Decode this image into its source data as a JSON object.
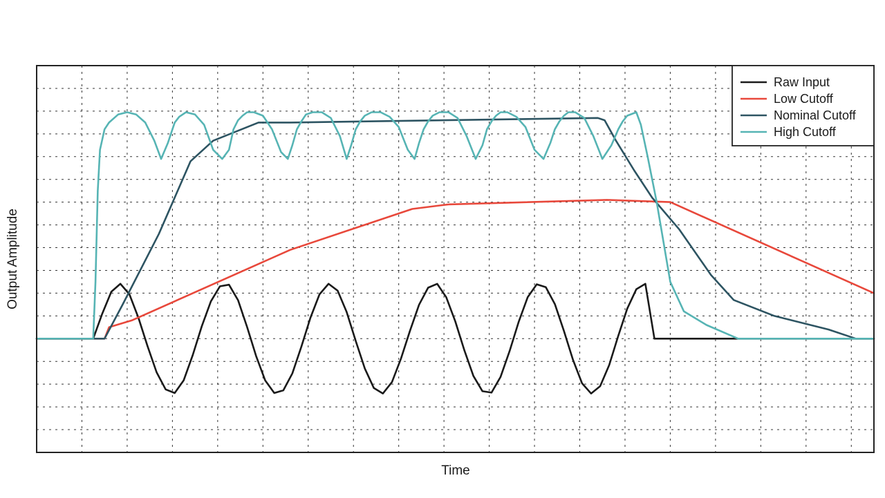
{
  "chart_data": {
    "type": "line",
    "title": "",
    "xlabel": "Time",
    "ylabel": "Output Amplitude",
    "xlim": [
      0,
      18.5
    ],
    "ylim": [
      -5,
      12
    ],
    "grid": true,
    "legend_position": "top-right",
    "series": [
      {
        "name": "Raw Input",
        "color": "#1a1a1a",
        "x": [
          0,
          1.25,
          1.45,
          1.65,
          1.85,
          2.05,
          2.25,
          2.45,
          2.65,
          2.85,
          3.05,
          3.25,
          3.45,
          3.65,
          3.85,
          4.05,
          4.25,
          4.45,
          4.65,
          4.85,
          5.05,
          5.25,
          5.45,
          5.65,
          5.85,
          6.05,
          6.25,
          6.45,
          6.65,
          6.85,
          7.05,
          7.25,
          7.45,
          7.65,
          7.85,
          8.05,
          8.25,
          8.45,
          8.65,
          8.85,
          9.05,
          9.25,
          9.45,
          9.65,
          9.85,
          10.05,
          10.25,
          10.45,
          10.65,
          10.85,
          11.05,
          11.25,
          11.45,
          11.65,
          11.85,
          12.05,
          12.25,
          12.45,
          12.65,
          12.85,
          13.05,
          13.25,
          13.45,
          13.65,
          18.5
        ],
        "y": [
          0,
          0,
          1.1,
          2.06,
          2.41,
          1.95,
          0.91,
          -0.33,
          -1.48,
          -2.23,
          -2.39,
          -1.83,
          -0.72,
          0.55,
          1.64,
          2.3,
          2.37,
          1.69,
          0.51,
          -0.77,
          -1.84,
          -2.39,
          -2.27,
          -1.53,
          -0.35,
          0.92,
          1.95,
          2.41,
          2.11,
          1.17,
          -0.1,
          -1.31,
          -2.17,
          -2.41,
          -1.91,
          -0.88,
          0.35,
          1.49,
          2.24,
          2.41,
          1.82,
          0.76,
          -0.51,
          -1.64,
          -2.31,
          -2.37,
          -1.68,
          -0.54,
          0.73,
          1.82,
          2.39,
          2.26,
          1.52,
          0.34,
          -0.93,
          -1.96,
          -2.41,
          -2.09,
          -1.16,
          0.12,
          1.32,
          2.17,
          2.41,
          0,
          0
        ]
      },
      {
        "name": "Low Cutoff",
        "color": "#e8483b",
        "x": [
          0,
          1.25,
          1.5,
          1.6,
          2.1,
          5.6,
          8.3,
          9.1,
          12.6,
          14.0,
          18.5
        ],
        "y": [
          0,
          0,
          0,
          0.5,
          0.8,
          3.9,
          5.7,
          5.9,
          6.1,
          6.0,
          2.0
        ]
      },
      {
        "name": "Nominal Cutoff",
        "color": "#2d5462",
        "x": [
          0,
          1.25,
          1.5,
          1.9,
          2.7,
          3.4,
          3.9,
          4.9,
          5.6,
          9.0,
          12.4,
          12.55,
          12.8,
          13.2,
          13.6,
          14.2,
          14.9,
          15.4,
          16.3,
          17.5,
          18.1,
          18.5
        ],
        "y": [
          0,
          0,
          0,
          1.5,
          4.6,
          7.8,
          8.7,
          9.5,
          9.5,
          9.6,
          9.7,
          9.6,
          8.7,
          7.4,
          6.2,
          4.8,
          2.8,
          1.7,
          1.0,
          0.4,
          0,
          0
        ]
      },
      {
        "name": "High Cutoff",
        "color": "#56b4b4",
        "x": [
          0,
          1.25,
          1.3,
          1.35,
          1.4,
          1.5,
          1.6,
          1.8,
          2.0,
          2.2,
          2.4,
          2.6,
          2.75,
          2.9,
          3.0,
          3.05,
          3.15,
          3.3,
          3.5,
          3.7,
          3.9,
          4.1,
          4.25,
          4.35,
          4.45,
          4.55,
          4.65,
          4.8,
          5.0,
          5.2,
          5.4,
          5.55,
          5.65,
          5.75,
          5.85,
          5.95,
          6.1,
          6.3,
          6.5,
          6.7,
          6.85,
          6.95,
          7.05,
          7.15,
          7.25,
          7.4,
          7.6,
          7.8,
          8.0,
          8.2,
          8.35,
          8.45,
          8.55,
          8.65,
          8.75,
          8.9,
          9.1,
          9.3,
          9.5,
          9.7,
          9.85,
          9.95,
          10.05,
          10.15,
          10.25,
          10.4,
          10.6,
          10.8,
          11.0,
          11.2,
          11.35,
          11.45,
          11.55,
          11.65,
          11.75,
          11.9,
          12.1,
          12.3,
          12.5,
          12.7,
          12.85,
          12.95,
          13.05,
          13.25,
          13.35,
          13.5,
          13.7,
          14.0,
          14.3,
          14.8,
          15.5,
          16.0,
          18.5
        ],
        "y": [
          0,
          0,
          2.5,
          6.5,
          8.3,
          9.2,
          9.5,
          9.85,
          9.95,
          9.85,
          9.5,
          8.7,
          7.9,
          8.6,
          9.2,
          9.5,
          9.75,
          9.95,
          9.85,
          9.4,
          8.3,
          7.9,
          8.3,
          9.2,
          9.6,
          9.8,
          9.95,
          9.95,
          9.8,
          9.2,
          8.2,
          7.9,
          8.5,
          9.2,
          9.55,
          9.85,
          9.95,
          9.95,
          9.7,
          8.9,
          7.9,
          8.5,
          9.2,
          9.55,
          9.8,
          9.95,
          9.95,
          9.75,
          9.3,
          8.3,
          7.9,
          8.6,
          9.2,
          9.55,
          9.8,
          9.95,
          9.95,
          9.7,
          8.9,
          7.9,
          8.5,
          9.2,
          9.55,
          9.8,
          9.95,
          9.95,
          9.75,
          9.3,
          8.3,
          7.9,
          8.6,
          9.2,
          9.55,
          9.8,
          9.95,
          9.95,
          9.7,
          8.9,
          7.9,
          8.5,
          9.2,
          9.55,
          9.8,
          9.95,
          9.4,
          8.0,
          6.0,
          2.5,
          1.2,
          0.6,
          0,
          0,
          0
        ]
      }
    ]
  }
}
